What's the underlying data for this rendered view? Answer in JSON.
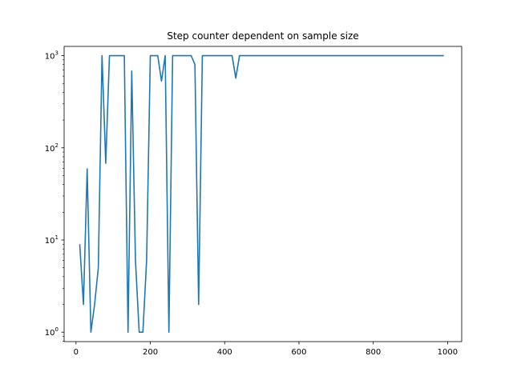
{
  "chart_data": {
    "type": "line",
    "title": "Step counter dependent on sample size",
    "xlabel": "",
    "ylabel": "",
    "yscale": "log",
    "xlim": [
      -32,
      1038
    ],
    "ylim": [
      0.79,
      1260
    ],
    "grid": false,
    "x_ticks": [
      0,
      200,
      400,
      600,
      800,
      1000
    ],
    "y_ticks": [
      1,
      10,
      100,
      1000
    ],
    "y_tick_labels": [
      {
        "base": "10",
        "exp": "0"
      },
      {
        "base": "10",
        "exp": "1"
      },
      {
        "base": "10",
        "exp": "2"
      },
      {
        "base": "10",
        "exp": "3"
      }
    ],
    "series": [
      {
        "color": "#1f77b4",
        "x": [
          10,
          20,
          30,
          40,
          50,
          60,
          70,
          80,
          90,
          100,
          110,
          120,
          130,
          140,
          150,
          160,
          170,
          180,
          190,
          200,
          210,
          220,
          230,
          240,
          250,
          260,
          270,
          280,
          290,
          300,
          310,
          320,
          330,
          340,
          350,
          360,
          370,
          380,
          390,
          400,
          410,
          420,
          430,
          440,
          450,
          460,
          470,
          480,
          490,
          500,
          510,
          520,
          530,
          540,
          550,
          560,
          570,
          580,
          590,
          600,
          610,
          620,
          630,
          640,
          650,
          660,
          670,
          680,
          690,
          700,
          710,
          720,
          730,
          740,
          750,
          760,
          770,
          780,
          790,
          800,
          810,
          820,
          830,
          840,
          850,
          860,
          870,
          880,
          890,
          900,
          910,
          920,
          930,
          940,
          950,
          960,
          970,
          980,
          990
        ],
        "y": [
          9,
          2,
          59,
          1,
          2,
          5,
          1000,
          68,
          1000,
          1000,
          1000,
          1000,
          1000,
          1,
          680,
          6,
          1,
          1,
          6,
          1000,
          1000,
          1000,
          530,
          1000,
          1,
          1000,
          1000,
          1000,
          1000,
          1000,
          1000,
          800,
          2,
          1000,
          1000,
          1000,
          1000,
          1000,
          1000,
          1000,
          1000,
          1000,
          570,
          1000,
          1000,
          1000,
          1000,
          1000,
          1000,
          1000,
          1000,
          1000,
          1000,
          1000,
          1000,
          1000,
          1000,
          1000,
          1000,
          1000,
          1000,
          1000,
          1000,
          1000,
          1000,
          1000,
          1000,
          1000,
          1000,
          1000,
          1000,
          1000,
          1000,
          1000,
          1000,
          1000,
          1000,
          1000,
          1000,
          1000,
          1000,
          1000,
          1000,
          1000,
          1000,
          1000,
          1000,
          1000,
          1000,
          1000,
          1000,
          1000,
          1000,
          1000,
          1000,
          1000,
          1000,
          1000,
          1000
        ]
      }
    ]
  }
}
